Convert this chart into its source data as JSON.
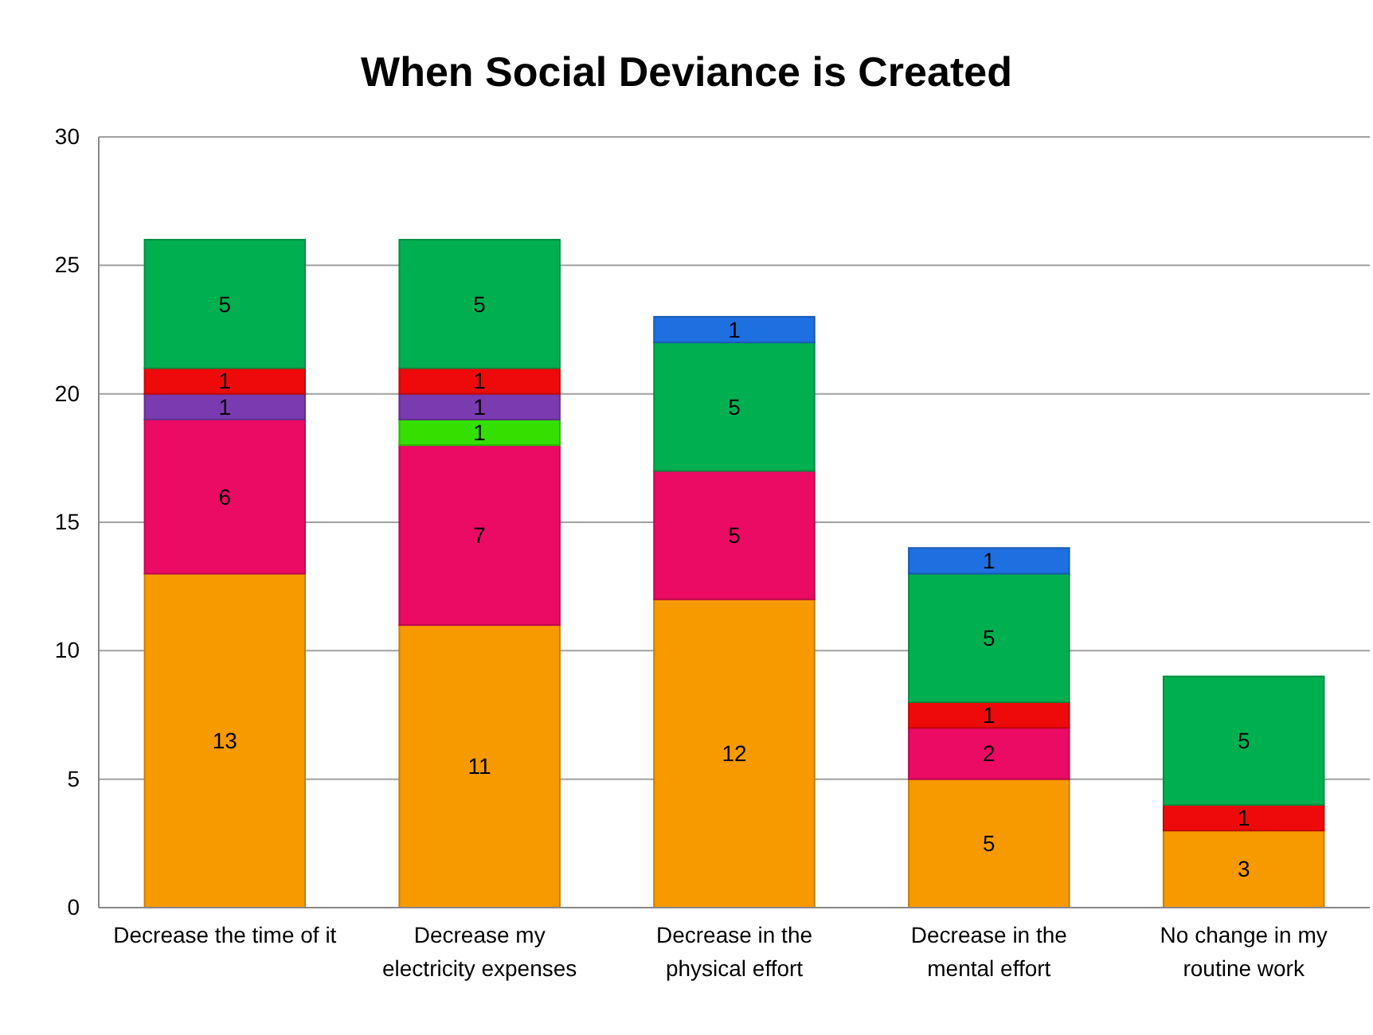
{
  "chart_data": {
    "type": "bar",
    "title": "When Social Deviance is Created",
    "categories": [
      "Decrease the time of it",
      "Decrease my electricity expenses",
      "Decrease in the physical effort",
      "Decrease in the mental effort",
      "No change in my routine work"
    ],
    "stacked": true,
    "data_labels": true,
    "grid": "y",
    "ylim": [
      0,
      30
    ],
    "yticks": [
      0,
      5,
      10,
      15,
      20,
      25,
      30
    ],
    "series": [
      {
        "color": "#f79a00",
        "values": [
          13,
          11,
          12,
          5,
          3
        ]
      },
      {
        "color": "#eb0a64",
        "values": [
          6,
          7,
          5,
          2,
          null
        ]
      },
      {
        "color": "#33e000",
        "values": [
          null,
          1,
          null,
          null,
          null
        ]
      },
      {
        "color": "#7a3ab0",
        "values": [
          1,
          1,
          null,
          null,
          null
        ]
      },
      {
        "color": "#ee0a0a",
        "values": [
          1,
          1,
          null,
          1,
          1
        ]
      },
      {
        "color": "#00b050",
        "values": [
          5,
          5,
          5,
          5,
          5
        ]
      },
      {
        "color": "#1e70e0",
        "values": [
          null,
          null,
          1,
          1,
          null
        ]
      }
    ]
  }
}
